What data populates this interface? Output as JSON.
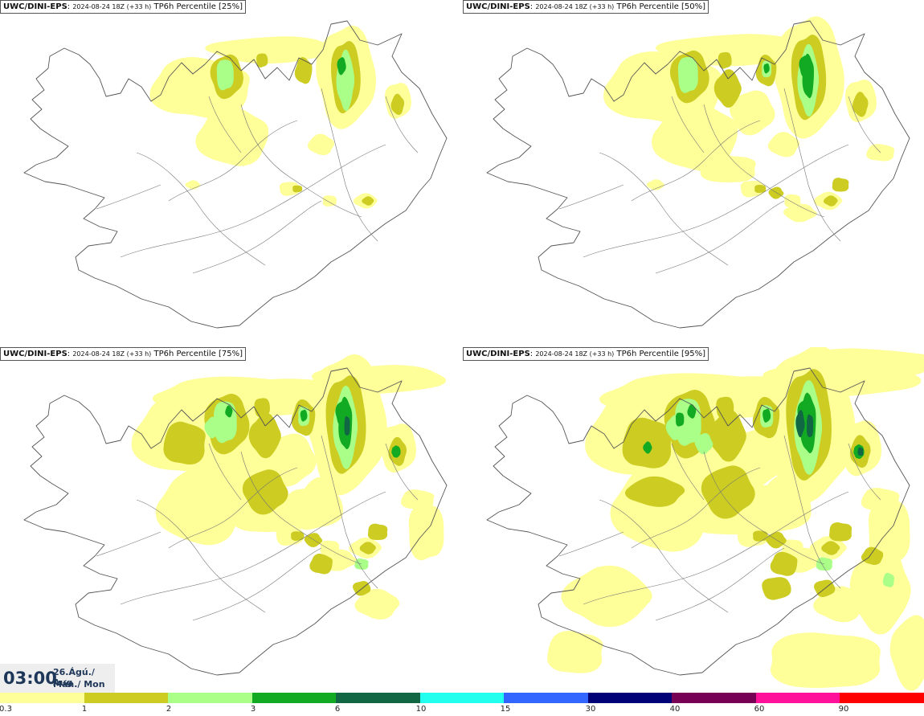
{
  "panels": [
    {
      "model": "UWC/DINI-EPS",
      "meta": "2024-08-24 18Z (+33 h)",
      "label": "TP6h Percentile [25%]",
      "level": 0
    },
    {
      "model": "UWC/DINI-EPS",
      "meta": "2024-08-24 18Z (+33 h)",
      "label": "TP6h Percentile [50%]",
      "level": 1
    },
    {
      "model": "UWC/DINI-EPS",
      "meta": "2024-08-24 18Z (+33 h)",
      "label": "TP6h Percentile [75%]",
      "level": 2
    },
    {
      "model": "UWC/DINI-EPS",
      "meta": "2024-08-24 18Z (+33 h)",
      "label": "TP6h Percentile [95%]",
      "level": 3
    }
  ],
  "time": {
    "clock": "03:00",
    "date_line": "26.Ágú./ Aug",
    "day_line": "Mán./ Mon"
  },
  "legend": {
    "ticks": [
      "0.3",
      "1",
      "2",
      "3",
      "6",
      "10",
      "15",
      "30",
      "40",
      "60",
      "90"
    ],
    "colors": [
      "#ffff99",
      "#cccc22",
      "#aaff88",
      "#11aa22",
      "#116644",
      "#22ffee",
      "#3366ff",
      "#000077",
      "#770055",
      "#ff1199",
      "#ff0000"
    ]
  }
}
